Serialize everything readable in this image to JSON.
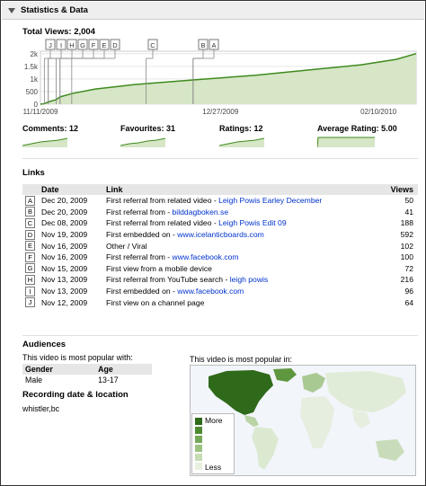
{
  "section": {
    "title": "Statistics & Data"
  },
  "total_views": {
    "label": "Total Views: 2,004"
  },
  "chart_data": {
    "type": "area",
    "title": "Total Views: 2,004",
    "x_ticks": [
      "11/11/2009",
      "12/27/2009",
      "02/10/2010"
    ],
    "y_ticks": [
      "0",
      "500",
      "1k",
      "1.5k",
      "2k"
    ],
    "ylim": [
      0,
      2100
    ],
    "x": [
      "11/11/2009",
      "11/12/2009",
      "11/13/2009",
      "11/15/2009",
      "11/16/2009",
      "11/19/2009",
      "11/25/2009",
      "12/05/2009",
      "12/20/2009",
      "01/05/2010",
      "01/20/2010",
      "02/01/2010",
      "02/10/2010",
      "02/15/2010"
    ],
    "series": [
      {
        "values": [
          0,
          20,
          90,
          180,
          290,
          420,
          600,
          780,
          960,
          1150,
          1380,
          1560,
          1780,
          2004
        ]
      }
    ],
    "markers": [
      "J",
      "I",
      "H",
      "G",
      "F",
      "E",
      "D",
      "C",
      "B",
      "A"
    ],
    "marker_dates": [
      "11/12/2009",
      "11/13/2009",
      "11/13/2009",
      "11/15/2009",
      "11/16/2009",
      "11/16/2009",
      "11/19/2009",
      "12/08/2009",
      "12/20/2009",
      "12/20/2009"
    ],
    "grid": true,
    "colors": {
      "line": "#3e8a1e",
      "fill": "#d6e6c6"
    }
  },
  "stats": [
    {
      "label": "Comments: 12"
    },
    {
      "label": "Favourites: 31"
    },
    {
      "label": "Ratings: 12"
    },
    {
      "label": "Average Rating: 5.00"
    }
  ],
  "links": {
    "heading": "Links",
    "columns": {
      "date": "Date",
      "link": "Link",
      "views": "Views"
    },
    "rows": [
      {
        "marker": "A",
        "date": "Dec 20, 2009",
        "text": "First referral from related video - ",
        "link": "Leigh Powis Earley December",
        "views": "50"
      },
      {
        "marker": "B",
        "date": "Dec 20, 2009",
        "text": "First referral from - ",
        "link": "bilddagboken.se",
        "views": "41"
      },
      {
        "marker": "C",
        "date": "Dec 08, 2009",
        "text": "First referral from related video - ",
        "link": "Leigh Powis Edit 09",
        "views": "188"
      },
      {
        "marker": "D",
        "date": "Nov 19, 2009",
        "text": "First embedded on - ",
        "link": "www.icelanticboards.com",
        "views": "592"
      },
      {
        "marker": "E",
        "date": "Nov 16, 2009",
        "text": "Other / Viral",
        "link": "",
        "views": "102"
      },
      {
        "marker": "F",
        "date": "Nov 16, 2009",
        "text": "First referral from - ",
        "link": "www.facebook.com",
        "views": "100"
      },
      {
        "marker": "G",
        "date": "Nov 15, 2009",
        "text": "First view from a mobile device",
        "link": "",
        "views": "72"
      },
      {
        "marker": "H",
        "date": "Nov 13, 2009",
        "text": "First referral from YouTube search - ",
        "link": "leigh powis",
        "views": "216"
      },
      {
        "marker": "I",
        "date": "Nov 13, 2009",
        "text": "First embedded on - ",
        "link": "www.facebook.com",
        "views": "96"
      },
      {
        "marker": "J",
        "date": "Nov 12, 2009",
        "text": "First view on a channel page",
        "link": "",
        "views": "64"
      }
    ]
  },
  "audiences": {
    "heading": "Audiences",
    "popular_with": "This video is most popular with:",
    "columns": {
      "gender": "Gender",
      "age": "Age"
    },
    "rows": [
      {
        "gender": "Male",
        "age": "13-17"
      }
    ]
  },
  "recording": {
    "heading": "Recording date & location",
    "value": "whistler,bc"
  },
  "map": {
    "label": "This video is most popular in:",
    "legend_more": "More",
    "legend_less": "Less"
  }
}
